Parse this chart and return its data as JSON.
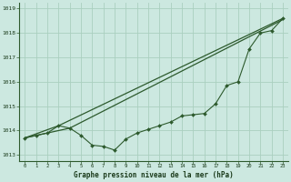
{
  "title": "Graphe pression niveau de la mer (hPa)",
  "bg_color": "#cce8e0",
  "line_color": "#2d5a2d",
  "grid_color": "#aacfbf",
  "xlim": [
    -0.5,
    23.5
  ],
  "ylim": [
    1012.75,
    1019.25
  ],
  "yticks": [
    1013,
    1014,
    1015,
    1016,
    1017,
    1018,
    1019
  ],
  "xticks": [
    0,
    1,
    2,
    3,
    4,
    5,
    6,
    7,
    8,
    9,
    10,
    11,
    12,
    13,
    14,
    15,
    16,
    17,
    18,
    19,
    20,
    21,
    22,
    23
  ],
  "series_detail": {
    "x": [
      0,
      1,
      2,
      3,
      4,
      5,
      6,
      7,
      8,
      9,
      10,
      11,
      12,
      13,
      14,
      15,
      16,
      17,
      18,
      19,
      20,
      21,
      22,
      23
    ],
    "y": [
      1013.7,
      1013.8,
      1013.9,
      1014.2,
      1014.1,
      1013.8,
      1013.4,
      1013.35,
      1013.2,
      1013.65,
      1013.9,
      1014.05,
      1014.2,
      1014.35,
      1014.6,
      1014.65,
      1014.7,
      1015.1,
      1015.85,
      1016.0,
      1017.35,
      1018.0,
      1018.1,
      1018.6
    ]
  },
  "series_upper": {
    "x": [
      0,
      3,
      23
    ],
    "y": [
      1013.7,
      1014.2,
      1018.6
    ]
  },
  "series_lower": {
    "x": [
      0,
      4,
      23
    ],
    "y": [
      1013.7,
      1014.1,
      1018.55
    ]
  }
}
